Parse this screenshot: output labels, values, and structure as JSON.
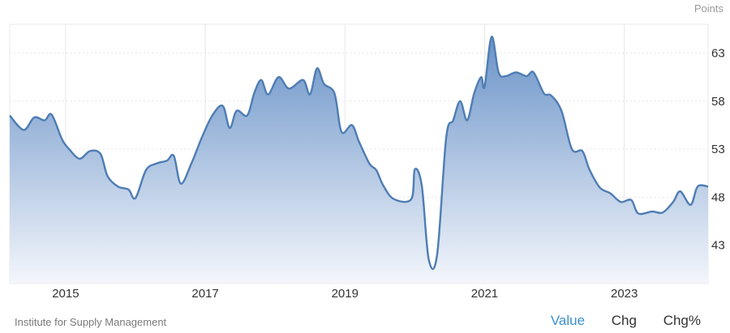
{
  "unit_label": "Points",
  "source": "Institute for Supply Management",
  "controls": {
    "value": "Value",
    "chg": "Chg",
    "chgpct": "Chg%"
  },
  "colors": {
    "line": "#4f7db3",
    "fill_top": "#6a93c8",
    "fill_bottom": "#f3f6fb",
    "accent": "#3b8fd0"
  },
  "chart_data": {
    "type": "area",
    "title": "",
    "xlabel": "",
    "ylabel": "",
    "grid": true,
    "xlim": [
      2014.2,
      2024.2
    ],
    "ylim": [
      39,
      66
    ],
    "x_ticks": [
      2015,
      2017,
      2019,
      2021,
      2023
    ],
    "x_tick_labels": [
      "2015",
      "2017",
      "2019",
      "2021",
      "2023"
    ],
    "y_ticks": [
      43,
      48,
      53,
      58,
      63
    ],
    "y_tick_labels": [
      "43",
      "48",
      "53",
      "58",
      "63"
    ],
    "series": [
      {
        "x": [
          2014.2,
          2014.4,
          2014.55,
          2014.7,
          2014.8,
          2014.95,
          2015.05,
          2015.2,
          2015.35,
          2015.5,
          2015.6,
          2015.75,
          2015.9,
          2016.0,
          2016.15,
          2016.3,
          2016.45,
          2016.55,
          2016.65,
          2016.8,
          2016.95,
          2017.1,
          2017.25,
          2017.35,
          2017.45,
          2017.6,
          2017.7,
          2017.8,
          2017.9,
          2018.05,
          2018.2,
          2018.4,
          2018.5,
          2018.6,
          2018.7,
          2018.85,
          2018.95,
          2019.1,
          2019.2,
          2019.35,
          2019.45,
          2019.55,
          2019.7,
          2019.95,
          2020.0,
          2020.1,
          2020.2,
          2020.32,
          2020.45,
          2020.55,
          2020.65,
          2020.75,
          2020.85,
          2020.95,
          2021.0,
          2021.1,
          2021.2,
          2021.3,
          2021.45,
          2021.6,
          2021.7,
          2021.85,
          2021.95,
          2022.1,
          2022.25,
          2022.4,
          2022.5,
          2022.65,
          2022.8,
          2022.95,
          2023.1,
          2023.2,
          2023.4,
          2023.55,
          2023.7,
          2023.8,
          2023.95,
          2024.05,
          2024.2
        ],
        "values": [
          56.5,
          55.0,
          56.3,
          56.0,
          56.6,
          54.0,
          53.0,
          52.0,
          52.8,
          52.5,
          50.2,
          49.1,
          48.8,
          47.9,
          50.8,
          51.5,
          51.8,
          52.3,
          49.4,
          51.5,
          54.2,
          56.5,
          57.5,
          55.2,
          57.0,
          56.5,
          58.8,
          60.2,
          58.7,
          60.5,
          59.3,
          60.2,
          58.7,
          61.4,
          59.8,
          58.8,
          54.8,
          55.5,
          53.8,
          51.5,
          50.8,
          49.2,
          47.8,
          47.8,
          50.9,
          49.2,
          41.5,
          42.0,
          54.2,
          56.0,
          58.0,
          56.0,
          58.8,
          60.5,
          59.5,
          64.7,
          61.0,
          60.6,
          61.0,
          60.6,
          61.0,
          58.8,
          58.6,
          57.0,
          53.0,
          52.8,
          50.9,
          49.0,
          48.4,
          47.5,
          47.7,
          46.3,
          46.5,
          46.4,
          47.5,
          48.6,
          47.2,
          49.1,
          49.1
        ]
      }
    ]
  }
}
